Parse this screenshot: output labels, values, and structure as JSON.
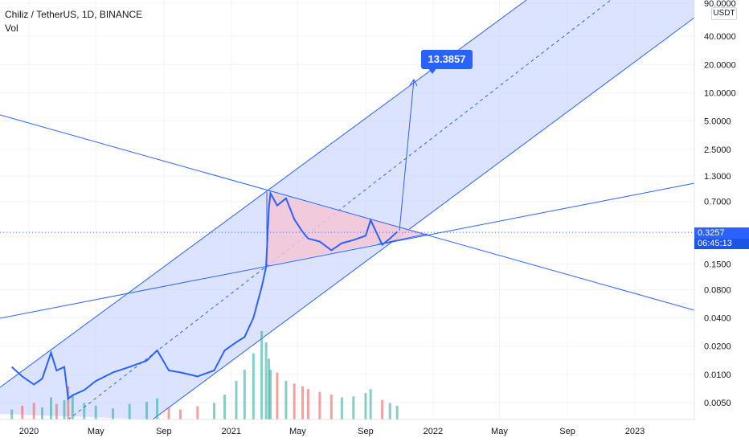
{
  "header": {
    "symbol": "Chiliz / TetherUS, 1D, BINANCE",
    "indicator": "Vol",
    "currency": "USDT"
  },
  "price_tag": {
    "value": "0.3257",
    "countdown": "06:45:13"
  },
  "annotation": {
    "target_label": "13.3857"
  },
  "colors": {
    "line": "#2962ff",
    "channel_fill": "#bfccff",
    "triangle_fill": "#f4c6d6",
    "vol_up": "#26a69a",
    "vol_down": "#ef5350",
    "grid": "#f0f3fa"
  },
  "chart_data": {
    "type": "line",
    "scale": "log",
    "x_ticks": [
      "2020",
      "May",
      "Sep",
      "2021",
      "May",
      "Sep",
      "2022",
      "May",
      "Sep",
      "2023"
    ],
    "y_ticks": [
      90,
      40,
      20,
      10,
      5,
      2.5,
      1.3,
      0.7,
      0.3257,
      0.15,
      0.08,
      0.04,
      0.02,
      0.01,
      0.005
    ],
    "y_tick_labels": [
      "90.0000",
      "40.0000",
      "20.0000",
      "10.0000",
      "5.0000",
      "2.5000",
      "1.3000",
      "0.7000",
      "0.3257",
      "0.1500",
      "0.0800",
      "0.0400",
      "0.0200",
      "0.0100",
      "0.0050"
    ],
    "series": [
      {
        "x": [
          "2019-12-01",
          "2019-12-20",
          "2020-01-10",
          "2020-01-25",
          "2020-02-10",
          "2020-02-20",
          "2020-03-05",
          "2020-03-12",
          "2020-03-20",
          "2020-04-10",
          "2020-05-01",
          "2020-06-01",
          "2020-07-01",
          "2020-08-01",
          "2020-08-20",
          "2020-09-10",
          "2020-10-01",
          "2020-11-01",
          "2020-12-01",
          "2020-12-20",
          "2021-01-10",
          "2021-01-25",
          "2021-02-10",
          "2021-02-25",
          "2021-03-05",
          "2021-03-10",
          "2021-03-13",
          "2021-03-25",
          "2021-04-10",
          "2021-04-25",
          "2021-05-10",
          "2021-05-20",
          "2021-06-10",
          "2021-07-01",
          "2021-07-20",
          "2021-08-10",
          "2021-09-01",
          "2021-09-10",
          "2021-10-01",
          "2021-10-15",
          "2021-10-28"
        ],
        "values": [
          0.012,
          0.0095,
          0.0078,
          0.009,
          0.017,
          0.011,
          0.012,
          0.0055,
          0.006,
          0.0068,
          0.0085,
          0.0105,
          0.012,
          0.014,
          0.018,
          0.011,
          0.0105,
          0.0095,
          0.011,
          0.018,
          0.022,
          0.025,
          0.04,
          0.085,
          0.14,
          0.6,
          0.85,
          0.63,
          0.75,
          0.45,
          0.33,
          0.28,
          0.26,
          0.21,
          0.25,
          0.27,
          0.3,
          0.44,
          0.24,
          0.28,
          0.33
        ]
      }
    ],
    "volume": [
      18,
      25,
      30,
      22,
      40,
      28,
      35,
      60,
      45,
      30,
      25,
      20,
      28,
      32,
      38,
      22,
      18,
      24,
      30,
      45,
      70,
      90,
      120,
      160,
      140,
      110,
      90,
      85,
      70,
      65,
      60,
      55,
      50,
      45,
      40,
      42,
      48,
      55,
      35,
      30,
      25
    ],
    "drawings": {
      "projection_target": 13.3857
    }
  }
}
